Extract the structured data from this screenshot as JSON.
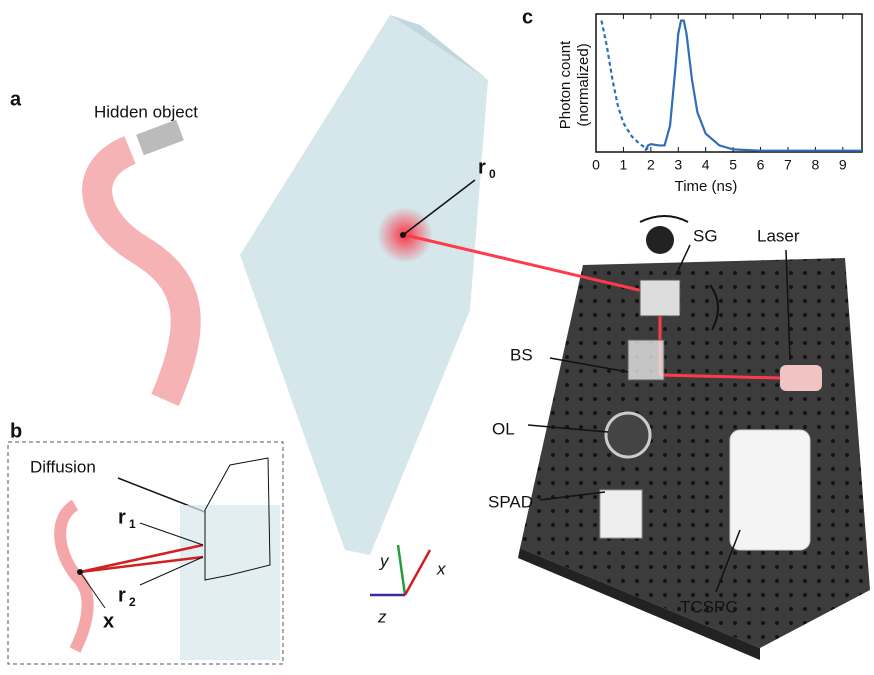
{
  "panels": {
    "a": "a",
    "b": "b",
    "c": "c"
  },
  "labels": {
    "hidden_object": "Hidden object",
    "r0": {
      "base": "r",
      "sub": "0"
    },
    "sg": "SG",
    "laser": "Laser",
    "bs": "BS",
    "ol": "OL",
    "spad": "SPAD",
    "tcspc": "TCSPC",
    "diffusion": "Diffusion",
    "r1": {
      "base": "r",
      "sub": "1"
    },
    "r2": {
      "base": "r",
      "sub": "2"
    },
    "x_point": "x",
    "axis_x": "x",
    "axis_y": "y",
    "axis_z": "z"
  },
  "chart_data": {
    "type": "line",
    "xlabel": "Time (ns)",
    "ylabel": [
      "Photon count",
      "(normalized)"
    ],
    "xlim": [
      0,
      9.7
    ],
    "ylim": [
      0,
      1.05
    ],
    "xticks": [
      0,
      1,
      2,
      3,
      4,
      5,
      6,
      7,
      8,
      9
    ],
    "series": [
      {
        "color": "#2f6fb5",
        "dash": false,
        "x": [
          1.8,
          1.9,
          2.0,
          2.3,
          2.5,
          2.7,
          2.9,
          3.0,
          3.1,
          3.2,
          3.3,
          3.5,
          3.7,
          4.0,
          4.5,
          5.0,
          6.0,
          9.7
        ],
        "values": [
          0.01,
          0.05,
          0.06,
          0.05,
          0.05,
          0.2,
          0.65,
          0.9,
          1.0,
          1.0,
          0.9,
          0.55,
          0.3,
          0.14,
          0.05,
          0.02,
          0.01,
          0.01
        ]
      },
      {
        "color": "#2f6fb5",
        "dash": true,
        "x": [
          0.2,
          0.4,
          0.6,
          0.8,
          1.0,
          1.3,
          1.6,
          1.9
        ],
        "values": [
          1.0,
          0.8,
          0.55,
          0.35,
          0.22,
          0.12,
          0.06,
          0.02
        ]
      }
    ]
  }
}
